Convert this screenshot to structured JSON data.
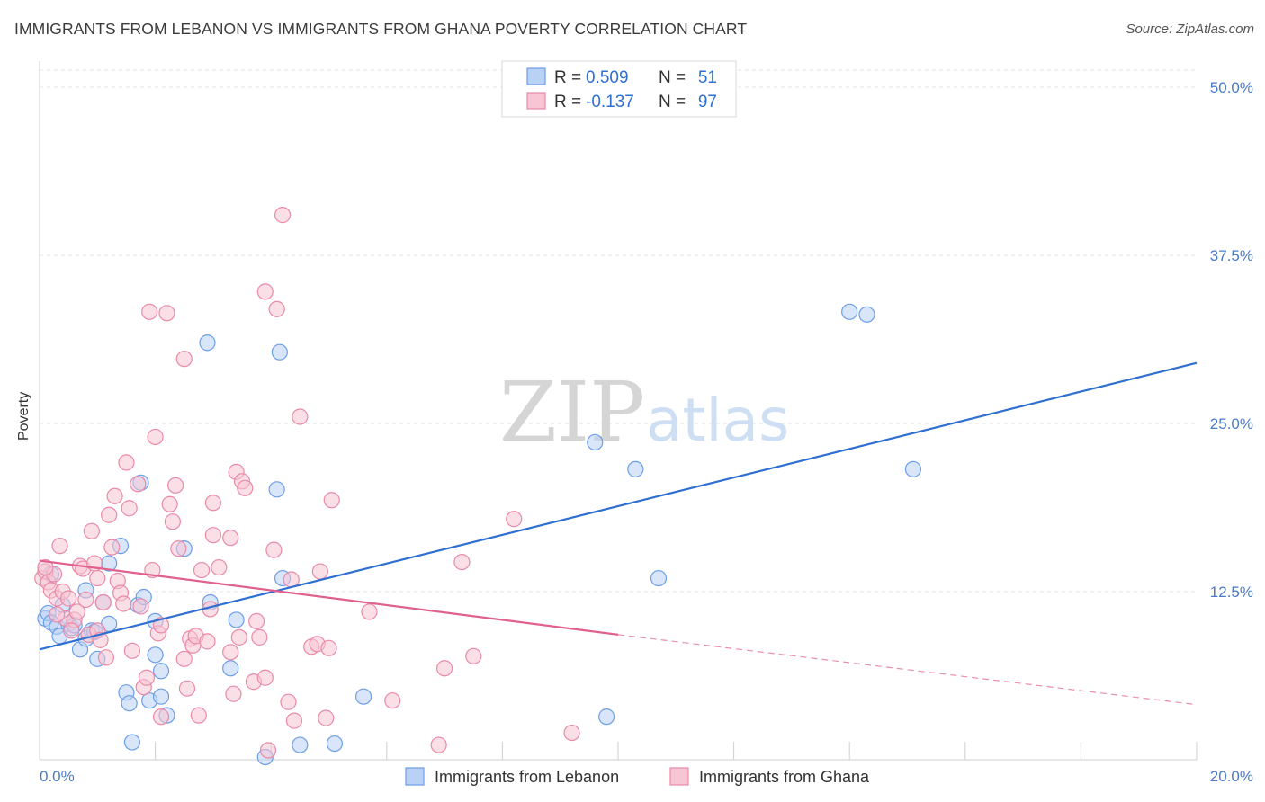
{
  "title": "IMMIGRANTS FROM LEBANON VS IMMIGRANTS FROM GHANA POVERTY CORRELATION CHART",
  "source": "Source: ZipAtlas.com",
  "watermark": {
    "zip": "ZIP",
    "atlas": "atlas"
  },
  "chart_data": {
    "type": "scatter",
    "title": "IMMIGRANTS FROM LEBANON VS IMMIGRANTS FROM GHANA POVERTY CORRELATION CHART",
    "xlabel": "",
    "ylabel": "Poverty",
    "xlim": [
      0,
      20
    ],
    "ylim": [
      0,
      50
    ],
    "x_ticks": [
      {
        "v": 0,
        "label": "0.0%"
      },
      {
        "v": 20,
        "label": "20.0%"
      }
    ],
    "y_ticks": [
      {
        "v": 12.5,
        "label": "12.5%"
      },
      {
        "v": 25,
        "label": "25.0%"
      },
      {
        "v": 37.5,
        "label": "37.5%"
      },
      {
        "v": 50,
        "label": "50.0%"
      }
    ],
    "grid": true,
    "legend_position": "top-center",
    "series": [
      {
        "name": "Immigrants from Lebanon",
        "color": "#6d9ee8",
        "fill": "#b9d1f4",
        "r_label": "R =",
        "r_value": "0.509",
        "n_label": "N =",
        "n_value": "51",
        "trend": {
          "x0": 0,
          "y0": 8.2,
          "x1": 20,
          "y1": 29.5,
          "color": "#2f6fd1"
        },
        "points": [
          [
            0.1,
            10.5
          ],
          [
            0.15,
            10.9
          ],
          [
            0.2,
            10.2
          ],
          [
            0.3,
            9.9
          ],
          [
            0.35,
            9.2
          ],
          [
            0.5,
            10.1
          ],
          [
            0.55,
            9.8
          ],
          [
            0.6,
            10.0
          ],
          [
            0.7,
            8.2
          ],
          [
            0.8,
            9.0
          ],
          [
            0.9,
            9.6
          ],
          [
            0.95,
            9.5
          ],
          [
            1.0,
            7.5
          ],
          [
            1.1,
            11.7
          ],
          [
            1.2,
            10.1
          ],
          [
            1.2,
            14.6
          ],
          [
            1.4,
            15.9
          ],
          [
            1.5,
            5.0
          ],
          [
            1.55,
            4.2
          ],
          [
            1.6,
            1.3
          ],
          [
            1.7,
            11.5
          ],
          [
            1.75,
            20.6
          ],
          [
            1.8,
            12.1
          ],
          [
            1.9,
            4.4
          ],
          [
            2.0,
            10.3
          ],
          [
            2.0,
            7.8
          ],
          [
            2.1,
            6.6
          ],
          [
            2.1,
            4.7
          ],
          [
            2.2,
            3.3
          ],
          [
            2.5,
            15.7
          ],
          [
            2.9,
            31.0
          ],
          [
            2.95,
            11.7
          ],
          [
            3.3,
            6.8
          ],
          [
            3.4,
            10.4
          ],
          [
            3.9,
            0.2
          ],
          [
            4.1,
            20.1
          ],
          [
            4.15,
            30.3
          ],
          [
            4.2,
            13.5
          ],
          [
            4.5,
            1.1
          ],
          [
            5.1,
            1.2
          ],
          [
            5.6,
            4.7
          ],
          [
            9.6,
            23.6
          ],
          [
            9.8,
            3.2
          ],
          [
            10.3,
            21.6
          ],
          [
            10.7,
            13.5
          ],
          [
            14.0,
            33.3
          ],
          [
            14.3,
            33.1
          ],
          [
            15.1,
            21.6
          ],
          [
            0.2,
            13.8
          ],
          [
            0.4,
            11.5
          ],
          [
            0.8,
            12.6
          ]
        ]
      },
      {
        "name": "Immigrants from Ghana",
        "color": "#e98aa8",
        "fill": "#f7c5d4",
        "r_label": "R =",
        "r_value": "-0.137",
        "n_label": "N =",
        "n_value": "97",
        "trend": {
          "x0": 0,
          "y0": 14.8,
          "x1": 10,
          "y1": 9.3,
          "color": "#e0608e"
        },
        "trend_dashed": {
          "x0": 10,
          "y0": 9.3,
          "x1": 20,
          "y1": 4.1
        },
        "points": [
          [
            0.05,
            13.5
          ],
          [
            0.1,
            14.0
          ],
          [
            0.15,
            13.2
          ],
          [
            0.2,
            12.6
          ],
          [
            0.25,
            13.8
          ],
          [
            0.3,
            12.0
          ],
          [
            0.35,
            15.9
          ],
          [
            0.4,
            12.5
          ],
          [
            0.45,
            10.5
          ],
          [
            0.5,
            12.0
          ],
          [
            0.6,
            10.4
          ],
          [
            0.65,
            11.0
          ],
          [
            0.7,
            14.4
          ],
          [
            0.75,
            14.2
          ],
          [
            0.8,
            11.9
          ],
          [
            0.85,
            9.3
          ],
          [
            0.9,
            17.0
          ],
          [
            0.95,
            14.6
          ],
          [
            1.0,
            13.5
          ],
          [
            1.0,
            9.6
          ],
          [
            1.05,
            8.9
          ],
          [
            1.1,
            11.7
          ],
          [
            1.15,
            7.6
          ],
          [
            1.2,
            18.2
          ],
          [
            1.3,
            19.6
          ],
          [
            1.35,
            13.3
          ],
          [
            1.4,
            12.4
          ],
          [
            1.45,
            11.6
          ],
          [
            1.5,
            22.1
          ],
          [
            1.55,
            18.7
          ],
          [
            1.6,
            8.1
          ],
          [
            1.7,
            20.5
          ],
          [
            1.75,
            11.4
          ],
          [
            1.8,
            5.4
          ],
          [
            1.85,
            6.1
          ],
          [
            1.9,
            33.3
          ],
          [
            1.95,
            14.1
          ],
          [
            2.0,
            24.0
          ],
          [
            2.05,
            9.4
          ],
          [
            2.1,
            10.0
          ],
          [
            2.1,
            3.2
          ],
          [
            2.2,
            33.2
          ],
          [
            2.25,
            19.0
          ],
          [
            2.3,
            17.7
          ],
          [
            2.35,
            20.4
          ],
          [
            2.4,
            15.7
          ],
          [
            2.5,
            29.8
          ],
          [
            2.5,
            7.5
          ],
          [
            2.55,
            5.3
          ],
          [
            2.6,
            9.0
          ],
          [
            2.65,
            8.5
          ],
          [
            2.7,
            9.2
          ],
          [
            2.75,
            3.3
          ],
          [
            2.8,
            14.1
          ],
          [
            2.9,
            8.8
          ],
          [
            2.95,
            11.2
          ],
          [
            3.0,
            16.7
          ],
          [
            3.0,
            19.1
          ],
          [
            3.1,
            14.3
          ],
          [
            3.3,
            16.5
          ],
          [
            3.3,
            8.0
          ],
          [
            3.35,
            4.9
          ],
          [
            3.4,
            21.4
          ],
          [
            3.45,
            9.1
          ],
          [
            3.5,
            20.7
          ],
          [
            3.55,
            20.2
          ],
          [
            3.7,
            5.8
          ],
          [
            3.75,
            10.3
          ],
          [
            3.8,
            9.1
          ],
          [
            3.9,
            6.1
          ],
          [
            3.9,
            34.8
          ],
          [
            3.95,
            0.7
          ],
          [
            4.05,
            15.6
          ],
          [
            4.1,
            33.5
          ],
          [
            4.2,
            40.5
          ],
          [
            4.3,
            4.3
          ],
          [
            4.35,
            13.4
          ],
          [
            4.4,
            2.9
          ],
          [
            4.5,
            25.5
          ],
          [
            4.7,
            8.4
          ],
          [
            4.8,
            8.6
          ],
          [
            4.85,
            14.0
          ],
          [
            4.95,
            3.1
          ],
          [
            5.0,
            8.3
          ],
          [
            5.05,
            19.3
          ],
          [
            5.7,
            11.0
          ],
          [
            6.1,
            4.4
          ],
          [
            6.9,
            1.1
          ],
          [
            7.0,
            6.8
          ],
          [
            7.3,
            14.7
          ],
          [
            7.5,
            7.7
          ],
          [
            8.2,
            17.9
          ],
          [
            9.2,
            2.0
          ],
          [
            0.1,
            14.3
          ],
          [
            0.3,
            10.8
          ],
          [
            1.25,
            15.8
          ],
          [
            0.55,
            9.6
          ]
        ]
      }
    ]
  }
}
